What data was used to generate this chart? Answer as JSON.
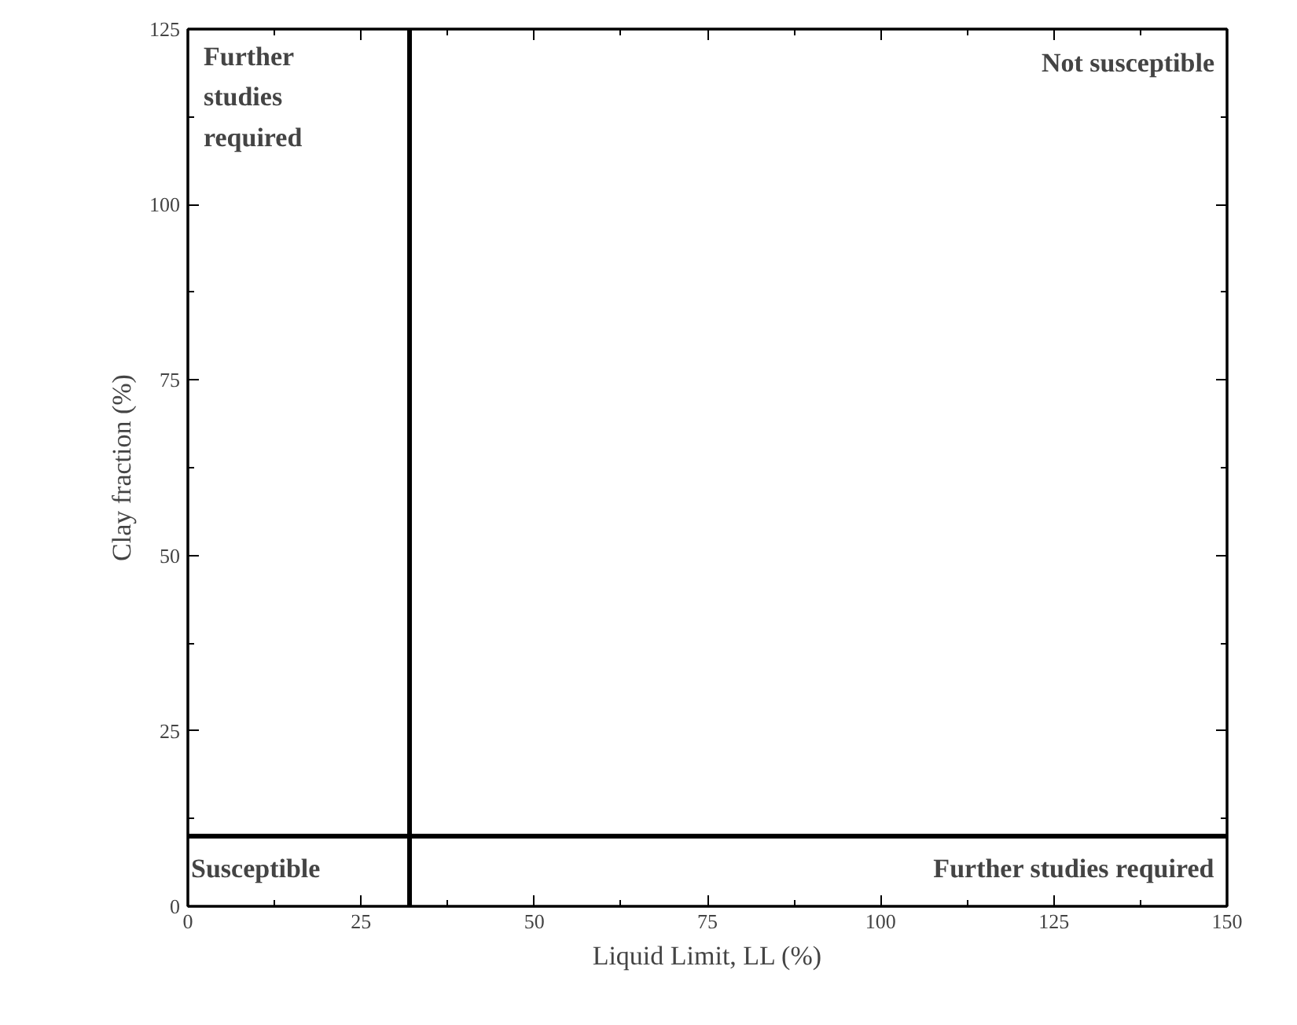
{
  "chart_data": {
    "type": "scatter",
    "xlabel": "Liquid Limit, LL (%)",
    "ylabel": "Clay fraction (%)",
    "xlim": [
      0,
      150
    ],
    "ylim": [
      0,
      125
    ],
    "xticks": [
      0,
      25,
      50,
      75,
      100,
      125,
      150
    ],
    "yticks": [
      0,
      25,
      50,
      75,
      100,
      125
    ],
    "grid": false,
    "ref_lines": [
      {
        "axis": "x",
        "value": 32,
        "label": null,
        "color": "#000000"
      },
      {
        "axis": "y",
        "value": 10,
        "label": null,
        "color": "#000000"
      }
    ],
    "annotations": [
      "Further\nstudies\nrequired",
      "Not susceptible",
      "Susceptible",
      "Further studies required"
    ]
  }
}
